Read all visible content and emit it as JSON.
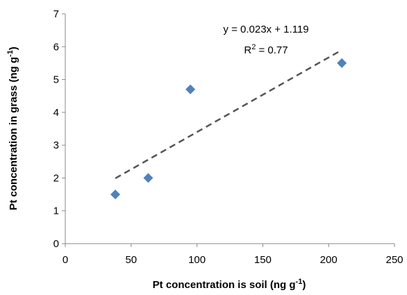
{
  "chart_data": {
    "type": "scatter",
    "title": "",
    "xlabel": "Pt concentration is soil (ng g",
    "xlabel_sup": "-1",
    "xlabel_end": ")",
    "ylabel": "Pt concentration in grass (ng g",
    "ylabel_sup": "-1",
    "ylabel_end": ")",
    "xlim": [
      0,
      250
    ],
    "ylim": [
      0,
      7
    ],
    "xticks": [
      0,
      50,
      100,
      150,
      200,
      250
    ],
    "yticks": [
      0,
      1,
      2,
      3,
      4,
      5,
      6,
      7
    ],
    "grid": false,
    "series": [
      {
        "marker": "diamond",
        "color": "#4F81BD",
        "points": [
          {
            "x": 38,
            "y": 1.5
          },
          {
            "x": 63,
            "y": 2.0
          },
          {
            "x": 95,
            "y": 4.7
          },
          {
            "x": 210,
            "y": 5.5
          }
        ]
      }
    ],
    "trendline": {
      "style": "dashed",
      "color": "#555555",
      "x_range": [
        38,
        210
      ],
      "y_range": [
        1.99,
        5.9
      ]
    },
    "annotations": {
      "equation": "y = 0.023x + 1.119",
      "r2_prefix": "R",
      "r2_sup": "2",
      "r2_suffix": " = 0.77"
    }
  }
}
